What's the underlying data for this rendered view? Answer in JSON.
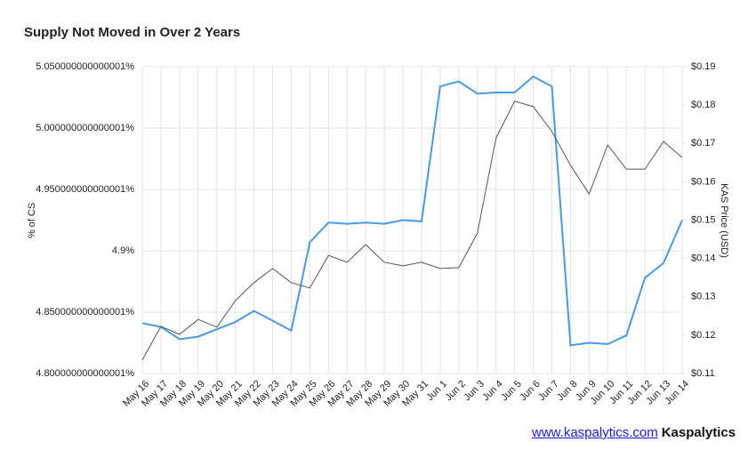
{
  "chart_data": {
    "type": "line",
    "title": "Supply Not Moved in Over 2 Years",
    "y_label": "% of CS",
    "y2_label": "KAS Price (USD)",
    "categories": [
      "May 16",
      "May 17",
      "May 18",
      "May 19",
      "May 20",
      "May 21",
      "May 22",
      "May 23",
      "May 24",
      "May 25",
      "May 26",
      "May 27",
      "May 28",
      "May 29",
      "May 30",
      "May 31",
      "Jun 1",
      "Jun 2",
      "Jun 3",
      "Jun 4",
      "Jun 5",
      "Jun 6",
      "Jun 7",
      "Jun 8",
      "Jun 9",
      "Jun 10",
      "Jun 11",
      "Jun 12",
      "Jun 13",
      "Jun 14"
    ],
    "series": [
      {
        "color": "#4a9ae0",
        "axis": "y",
        "values": [
          4.841,
          4.838,
          4.828,
          4.83,
          4.836,
          4.842,
          4.851,
          4.843,
          4.835,
          4.907,
          4.923,
          4.922,
          4.923,
          4.922,
          4.925,
          4.924,
          5.034,
          5.038,
          5.028,
          5.029,
          5.029,
          5.042,
          5.034,
          4.823,
          4.825,
          4.824,
          4.831,
          4.878,
          4.89,
          4.925
        ]
      },
      {
        "color": "#555555",
        "axis": "y2",
        "values": [
          0.1135,
          0.1223,
          0.1202,
          0.1241,
          0.1221,
          0.129,
          0.1337,
          0.1374,
          0.1337,
          0.1323,
          0.1408,
          0.139,
          0.1436,
          0.139,
          0.1381,
          0.139,
          0.1374,
          0.1376,
          0.1466,
          0.1714,
          0.181,
          0.1796,
          0.1731,
          0.1643,
          0.1568,
          0.1696,
          0.1633,
          0.1633,
          0.1705,
          0.1663
        ]
      }
    ],
    "ylim": [
      4.8,
      5.05
    ],
    "yticks": [
      {
        "value": 4.8,
        "label": "4.800000000000001%"
      },
      {
        "value": 4.85,
        "label": "4.850000000000001%"
      },
      {
        "value": 4.9,
        "label": "4.9%"
      },
      {
        "value": 4.95,
        "label": "4.950000000000001%"
      },
      {
        "value": 5.0,
        "label": "5.000000000000001%"
      },
      {
        "value": 5.05,
        "label": "5.050000000000001%"
      }
    ],
    "y2lim": [
      0.11,
      0.19
    ],
    "y2ticks": [
      {
        "value": 0.11,
        "label": "$0.11"
      },
      {
        "value": 0.12,
        "label": "$0.12"
      },
      {
        "value": 0.13,
        "label": "$0.13"
      },
      {
        "value": 0.14,
        "label": "$0.14"
      },
      {
        "value": 0.15,
        "label": "$0.15"
      },
      {
        "value": 0.16,
        "label": "$0.16"
      },
      {
        "value": 0.17,
        "label": "$0.17"
      },
      {
        "value": 0.18,
        "label": "$0.18"
      },
      {
        "value": 0.19,
        "label": "$0.19"
      }
    ],
    "grid": true
  },
  "footer": {
    "link": "www.kaspalytics.com",
    "brand": "Kaspalytics"
  }
}
